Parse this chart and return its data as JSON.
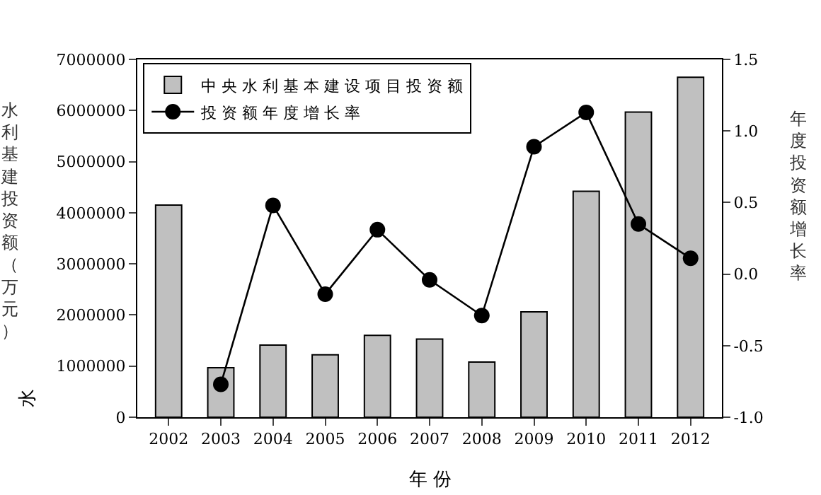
{
  "chart_data": {
    "type": "bar",
    "xlabel": "年 份",
    "ylabel": "水利基建投资额（万元）",
    "y2label": "年度投资额增长率",
    "categories": [
      "2002",
      "2003",
      "2004",
      "2005",
      "2006",
      "2007",
      "2008",
      "2009",
      "2010",
      "2011",
      "2012"
    ],
    "series": [
      {
        "name": "中 央 水 利 基 本 建 设 项 目 投 资 额",
        "color": "#c0c0c0",
        "values": [
          4150000,
          970000,
          1410000,
          1220000,
          1600000,
          1530000,
          1080000,
          2060000,
          4420000,
          5970000,
          6650000
        ]
      },
      {
        "name": "投 资 额 年 度 增 长 率",
        "type": "line",
        "axis": "y2",
        "color": "#000000",
        "marker": "circle",
        "line_style": "solid",
        "values": [
          null,
          -0.77,
          0.48,
          -0.14,
          0.31,
          -0.04,
          -0.29,
          0.89,
          1.13,
          0.35,
          0.11
        ]
      }
    ],
    "ylim": [
      0,
      7000000
    ],
    "yticks": [
      0,
      1000000,
      2000000,
      3000000,
      4000000,
      5000000,
      6000000,
      7000000
    ],
    "y2lim": [
      -1.0,
      1.5
    ],
    "y2ticks": [
      {
        "value": -1.0,
        "label": "-1.0"
      },
      {
        "value": -0.5,
        "label": "-0.5"
      },
      {
        "value": 0,
        "label": "0.0"
      },
      {
        "value": 0.5,
        "label": "0.5"
      },
      {
        "value": 1.0,
        "label": "1.0"
      },
      {
        "value": 1.5,
        "label": "1.5"
      }
    ],
    "legend": "top left",
    "annotations": [
      "水"
    ]
  }
}
